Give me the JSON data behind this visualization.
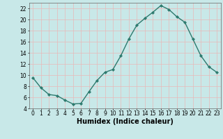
{
  "x": [
    0,
    1,
    2,
    3,
    4,
    5,
    6,
    7,
    8,
    9,
    10,
    11,
    12,
    13,
    14,
    15,
    16,
    17,
    18,
    19,
    20,
    21,
    22,
    23
  ],
  "y": [
    9.5,
    7.7,
    6.5,
    6.3,
    5.5,
    4.8,
    4.9,
    7.0,
    9.0,
    10.5,
    11.0,
    13.5,
    16.5,
    19.0,
    20.2,
    21.3,
    22.5,
    21.8,
    20.5,
    19.5,
    16.5,
    13.5,
    11.5,
    10.5
  ],
  "line_color": "#2d7a6e",
  "marker": "D",
  "marker_size": 2.2,
  "bg_color": "#c8e8e8",
  "grid_color": "#e8b8b8",
  "xlabel": "Humidex (Indice chaleur)",
  "ylim": [
    4,
    23
  ],
  "xlim": [
    -0.5,
    23.5
  ],
  "yticks": [
    4,
    6,
    8,
    10,
    12,
    14,
    16,
    18,
    20,
    22
  ],
  "xticks": [
    0,
    1,
    2,
    3,
    4,
    5,
    6,
    7,
    8,
    9,
    10,
    11,
    12,
    13,
    14,
    15,
    16,
    17,
    18,
    19,
    20,
    21,
    22,
    23
  ],
  "tick_fontsize": 5.5,
  "xlabel_fontsize": 7.0,
  "linewidth": 1.0
}
